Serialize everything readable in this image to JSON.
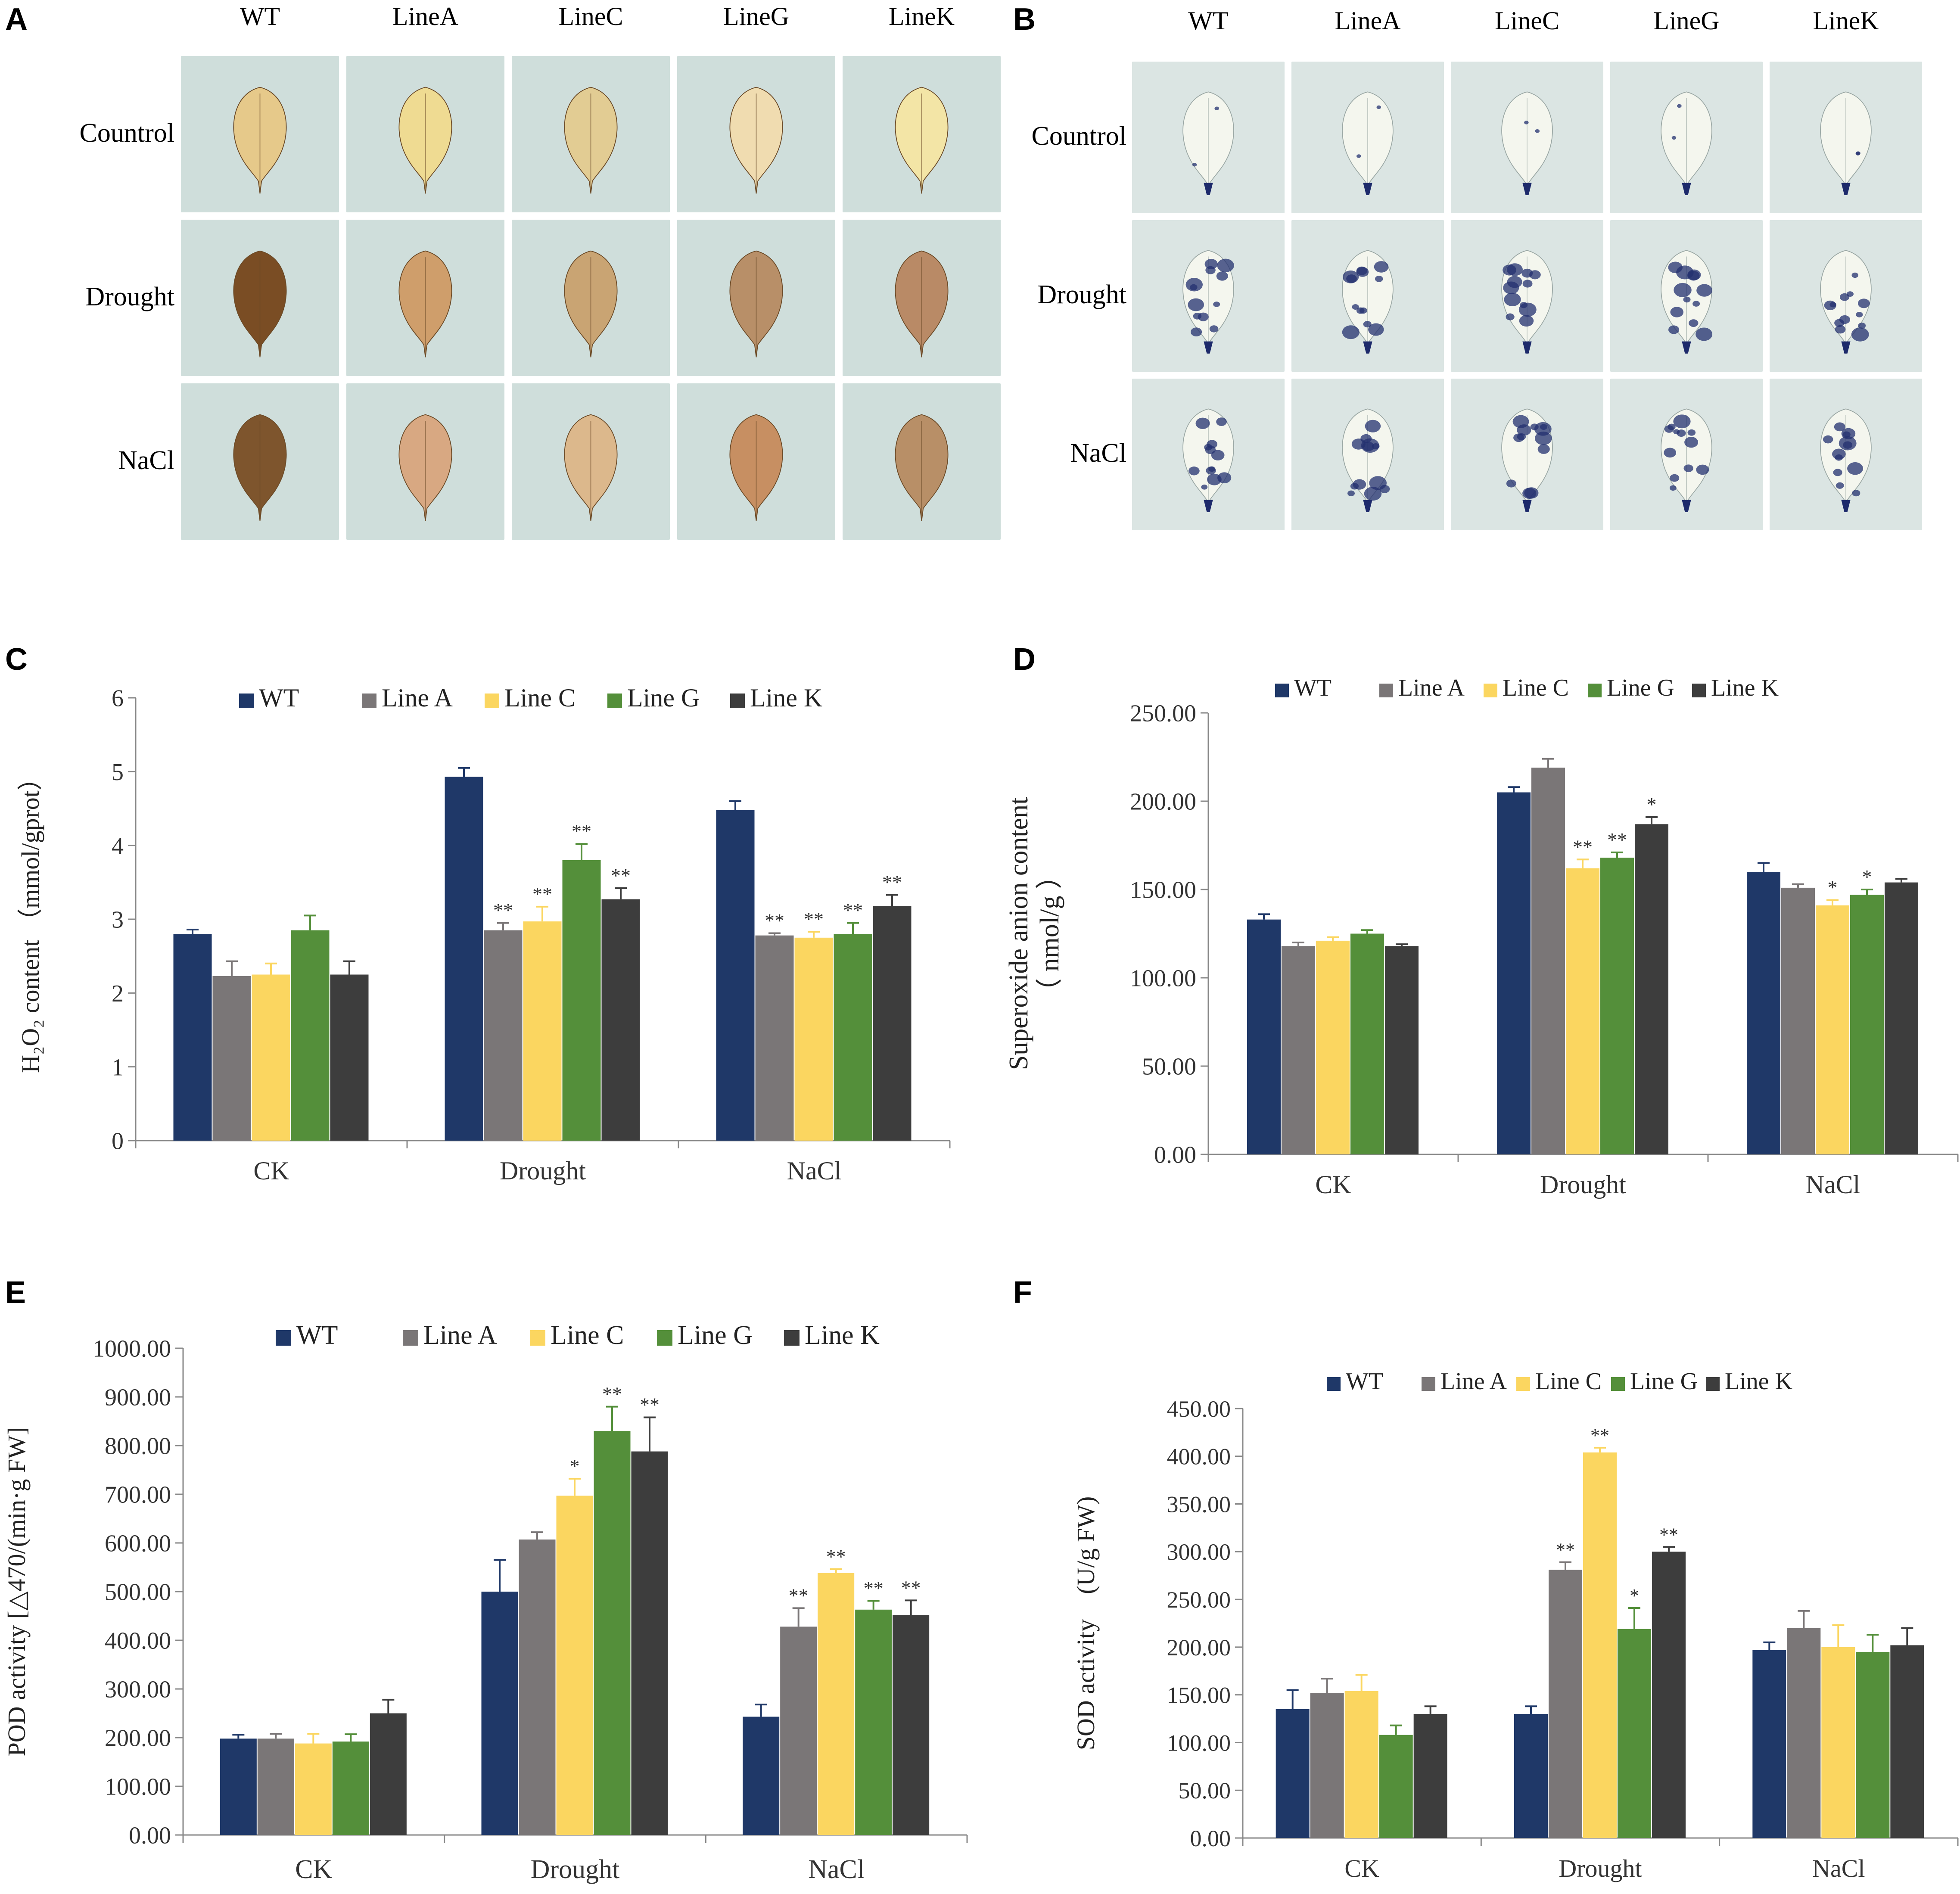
{
  "colors": {
    "WT": "#1f3868",
    "Line A": "#7a7677",
    "Line C": "#fbd660",
    "Line G": "#548f3a",
    "Line K": "#3d3d3d",
    "bgA": "#cfdedb",
    "bgB": "#dbe5e3"
  },
  "panelA": {
    "letter": "A",
    "columns": [
      "WT",
      "LineA",
      "LineC",
      "LineG",
      "LineK"
    ],
    "rows": [
      "Countrol",
      "Drought",
      "NaCl"
    ],
    "leaf_fill": [
      [
        "#e6c98a",
        "#efdb92",
        "#e2cc93",
        "#f0dcb0",
        "#f3e5a6"
      ],
      [
        "#7a4d24",
        "#cf9e6b",
        "#c9a473",
        "#b88f68",
        "#b98a66"
      ],
      [
        "#7e552d",
        "#d8a882",
        "#dcb88c",
        "#c78f62",
        "#b88f67"
      ]
    ]
  },
  "panelB": {
    "letter": "B",
    "columns": [
      "WT",
      "LineA",
      "LineC",
      "LineG",
      "LineK"
    ],
    "rows": [
      "Countrol",
      "Drought",
      "NaCl"
    ]
  },
  "charts": [
    {
      "letter": "C",
      "chart_data": {
        "type": "bar",
        "categories": [
          "CK",
          "Drought",
          "NaCl"
        ],
        "legend": [
          "WT",
          "Line A",
          "Line C",
          "Line G",
          "Line K"
        ],
        "ylabel": "H₂O₂ content （mmol/gprot）",
        "ylim": [
          0,
          6
        ],
        "yticks": [
          "0",
          "1",
          "2",
          "3",
          "4",
          "5",
          "6"
        ],
        "series": [
          {
            "name": "WT",
            "values": [
              2.8,
              4.93,
              4.48
            ],
            "err": [
              0.06,
              0.12,
              0.12
            ],
            "sig": [
              "",
              "",
              ""
            ]
          },
          {
            "name": "Line A",
            "values": [
              2.23,
              2.85,
              2.78
            ],
            "err": [
              0.2,
              0.1,
              0.03
            ],
            "sig": [
              "",
              "**",
              "**"
            ]
          },
          {
            "name": "Line C",
            "values": [
              2.25,
              2.97,
              2.75
            ],
            "err": [
              0.15,
              0.2,
              0.08
            ],
            "sig": [
              "",
              "**",
              "**"
            ]
          },
          {
            "name": "Line G",
            "values": [
              2.85,
              3.8,
              2.8
            ],
            "err": [
              0.2,
              0.22,
              0.15
            ],
            "sig": [
              "",
              "**",
              "**"
            ]
          },
          {
            "name": "Line K",
            "values": [
              2.25,
              3.27,
              3.18
            ],
            "err": [
              0.18,
              0.15,
              0.15
            ],
            "sig": [
              "",
              "**",
              "**"
            ]
          }
        ]
      }
    },
    {
      "letter": "D",
      "chart_data": {
        "type": "bar",
        "categories": [
          "CK",
          "Drought",
          "NaCl"
        ],
        "legend": [
          "WT",
          "Line A",
          "Line C",
          "Line G",
          "Line K"
        ],
        "ylabel": "Superoxide anion content",
        "ylabel2": "（ nmol/g ）",
        "ylim": [
          0,
          250
        ],
        "yticks": [
          "0.00",
          "50.00",
          "100.00",
          "150.00",
          "200.00",
          "250.00"
        ],
        "series": [
          {
            "name": "WT",
            "values": [
              133,
              205,
              160
            ],
            "err": [
              3,
              3,
              5
            ],
            "sig": [
              "",
              "",
              ""
            ]
          },
          {
            "name": "Line A",
            "values": [
              118,
              219,
              151
            ],
            "err": [
              2,
              5,
              2
            ],
            "sig": [
              "",
              "",
              ""
            ]
          },
          {
            "name": "Line C",
            "values": [
              121,
              162,
              141
            ],
            "err": [
              2,
              5,
              3
            ],
            "sig": [
              "",
              "**",
              "*"
            ]
          },
          {
            "name": "Line G",
            "values": [
              125,
              168,
              147
            ],
            "err": [
              2,
              3,
              3
            ],
            "sig": [
              "",
              "**",
              "*"
            ]
          },
          {
            "name": "Line K",
            "values": [
              118,
              187,
              154
            ],
            "err": [
              1,
              4,
              2
            ],
            "sig": [
              "",
              "*",
              ""
            ]
          }
        ]
      }
    },
    {
      "letter": "E",
      "chart_data": {
        "type": "bar",
        "categories": [
          "CK",
          "Drought",
          "NaCl"
        ],
        "legend": [
          "WT",
          "Line A",
          "Line C",
          "Line G",
          "Line K"
        ],
        "ylabel": "POD activity [△470/(min·g FW]",
        "ylim": [
          0,
          1000
        ],
        "yticks": [
          "0.00",
          "100.00",
          "200.00",
          "300.00",
          "400.00",
          "500.00",
          "600.00",
          "700.00",
          "800.00",
          "900.00",
          "1000.00"
        ],
        "series": [
          {
            "name": "WT",
            "values": [
              198,
              500,
              243
            ],
            "err": [
              8,
              65,
              25
            ],
            "sig": [
              "",
              "",
              ""
            ]
          },
          {
            "name": "Line A",
            "values": [
              198,
              607,
              428
            ],
            "err": [
              10,
              15,
              38
            ],
            "sig": [
              "",
              "",
              "**"
            ]
          },
          {
            "name": "Line C",
            "values": [
              188,
              697,
              538
            ],
            "err": [
              20,
              35,
              8
            ],
            "sig": [
              "",
              "*",
              "**"
            ]
          },
          {
            "name": "Line G",
            "values": [
              192,
              830,
              463
            ],
            "err": [
              15,
              50,
              18
            ],
            "sig": [
              "",
              "**",
              "**"
            ]
          },
          {
            "name": "Line K",
            "values": [
              250,
              788,
              452
            ],
            "err": [
              28,
              70,
              30
            ],
            "sig": [
              "",
              "**",
              "**"
            ]
          }
        ]
      }
    },
    {
      "letter": "F",
      "chart_data": {
        "type": "bar",
        "categories": [
          "CK",
          "Drought",
          "NaCl"
        ],
        "legend": [
          "WT",
          "Line A",
          "Line C",
          "Line G",
          "Line K"
        ],
        "ylabel": "SOD activity　(U/g FW)",
        "ylim": [
          0,
          450
        ],
        "yticks": [
          "0.00",
          "50.00",
          "100.00",
          "150.00",
          "200.00",
          "250.00",
          "300.00",
          "350.00",
          "400.00",
          "450.00"
        ],
        "series": [
          {
            "name": "WT",
            "values": [
              135,
              130,
              197
            ],
            "err": [
              20,
              8,
              8
            ],
            "sig": [
              "",
              "",
              ""
            ]
          },
          {
            "name": "Line A",
            "values": [
              152,
              281,
              220
            ],
            "err": [
              15,
              8,
              18
            ],
            "sig": [
              "",
              "**",
              ""
            ]
          },
          {
            "name": "Line C",
            "values": [
              154,
              404,
              200
            ],
            "err": [
              17,
              5,
              23
            ],
            "sig": [
              "",
              "**",
              ""
            ]
          },
          {
            "name": "Line G",
            "values": [
              108,
              219,
              195
            ],
            "err": [
              10,
              22,
              18
            ],
            "sig": [
              "",
              "*",
              ""
            ]
          },
          {
            "name": "Line K",
            "values": [
              130,
              300,
              202
            ],
            "err": [
              8,
              5,
              18
            ],
            "sig": [
              "",
              "**",
              ""
            ]
          }
        ]
      }
    }
  ]
}
